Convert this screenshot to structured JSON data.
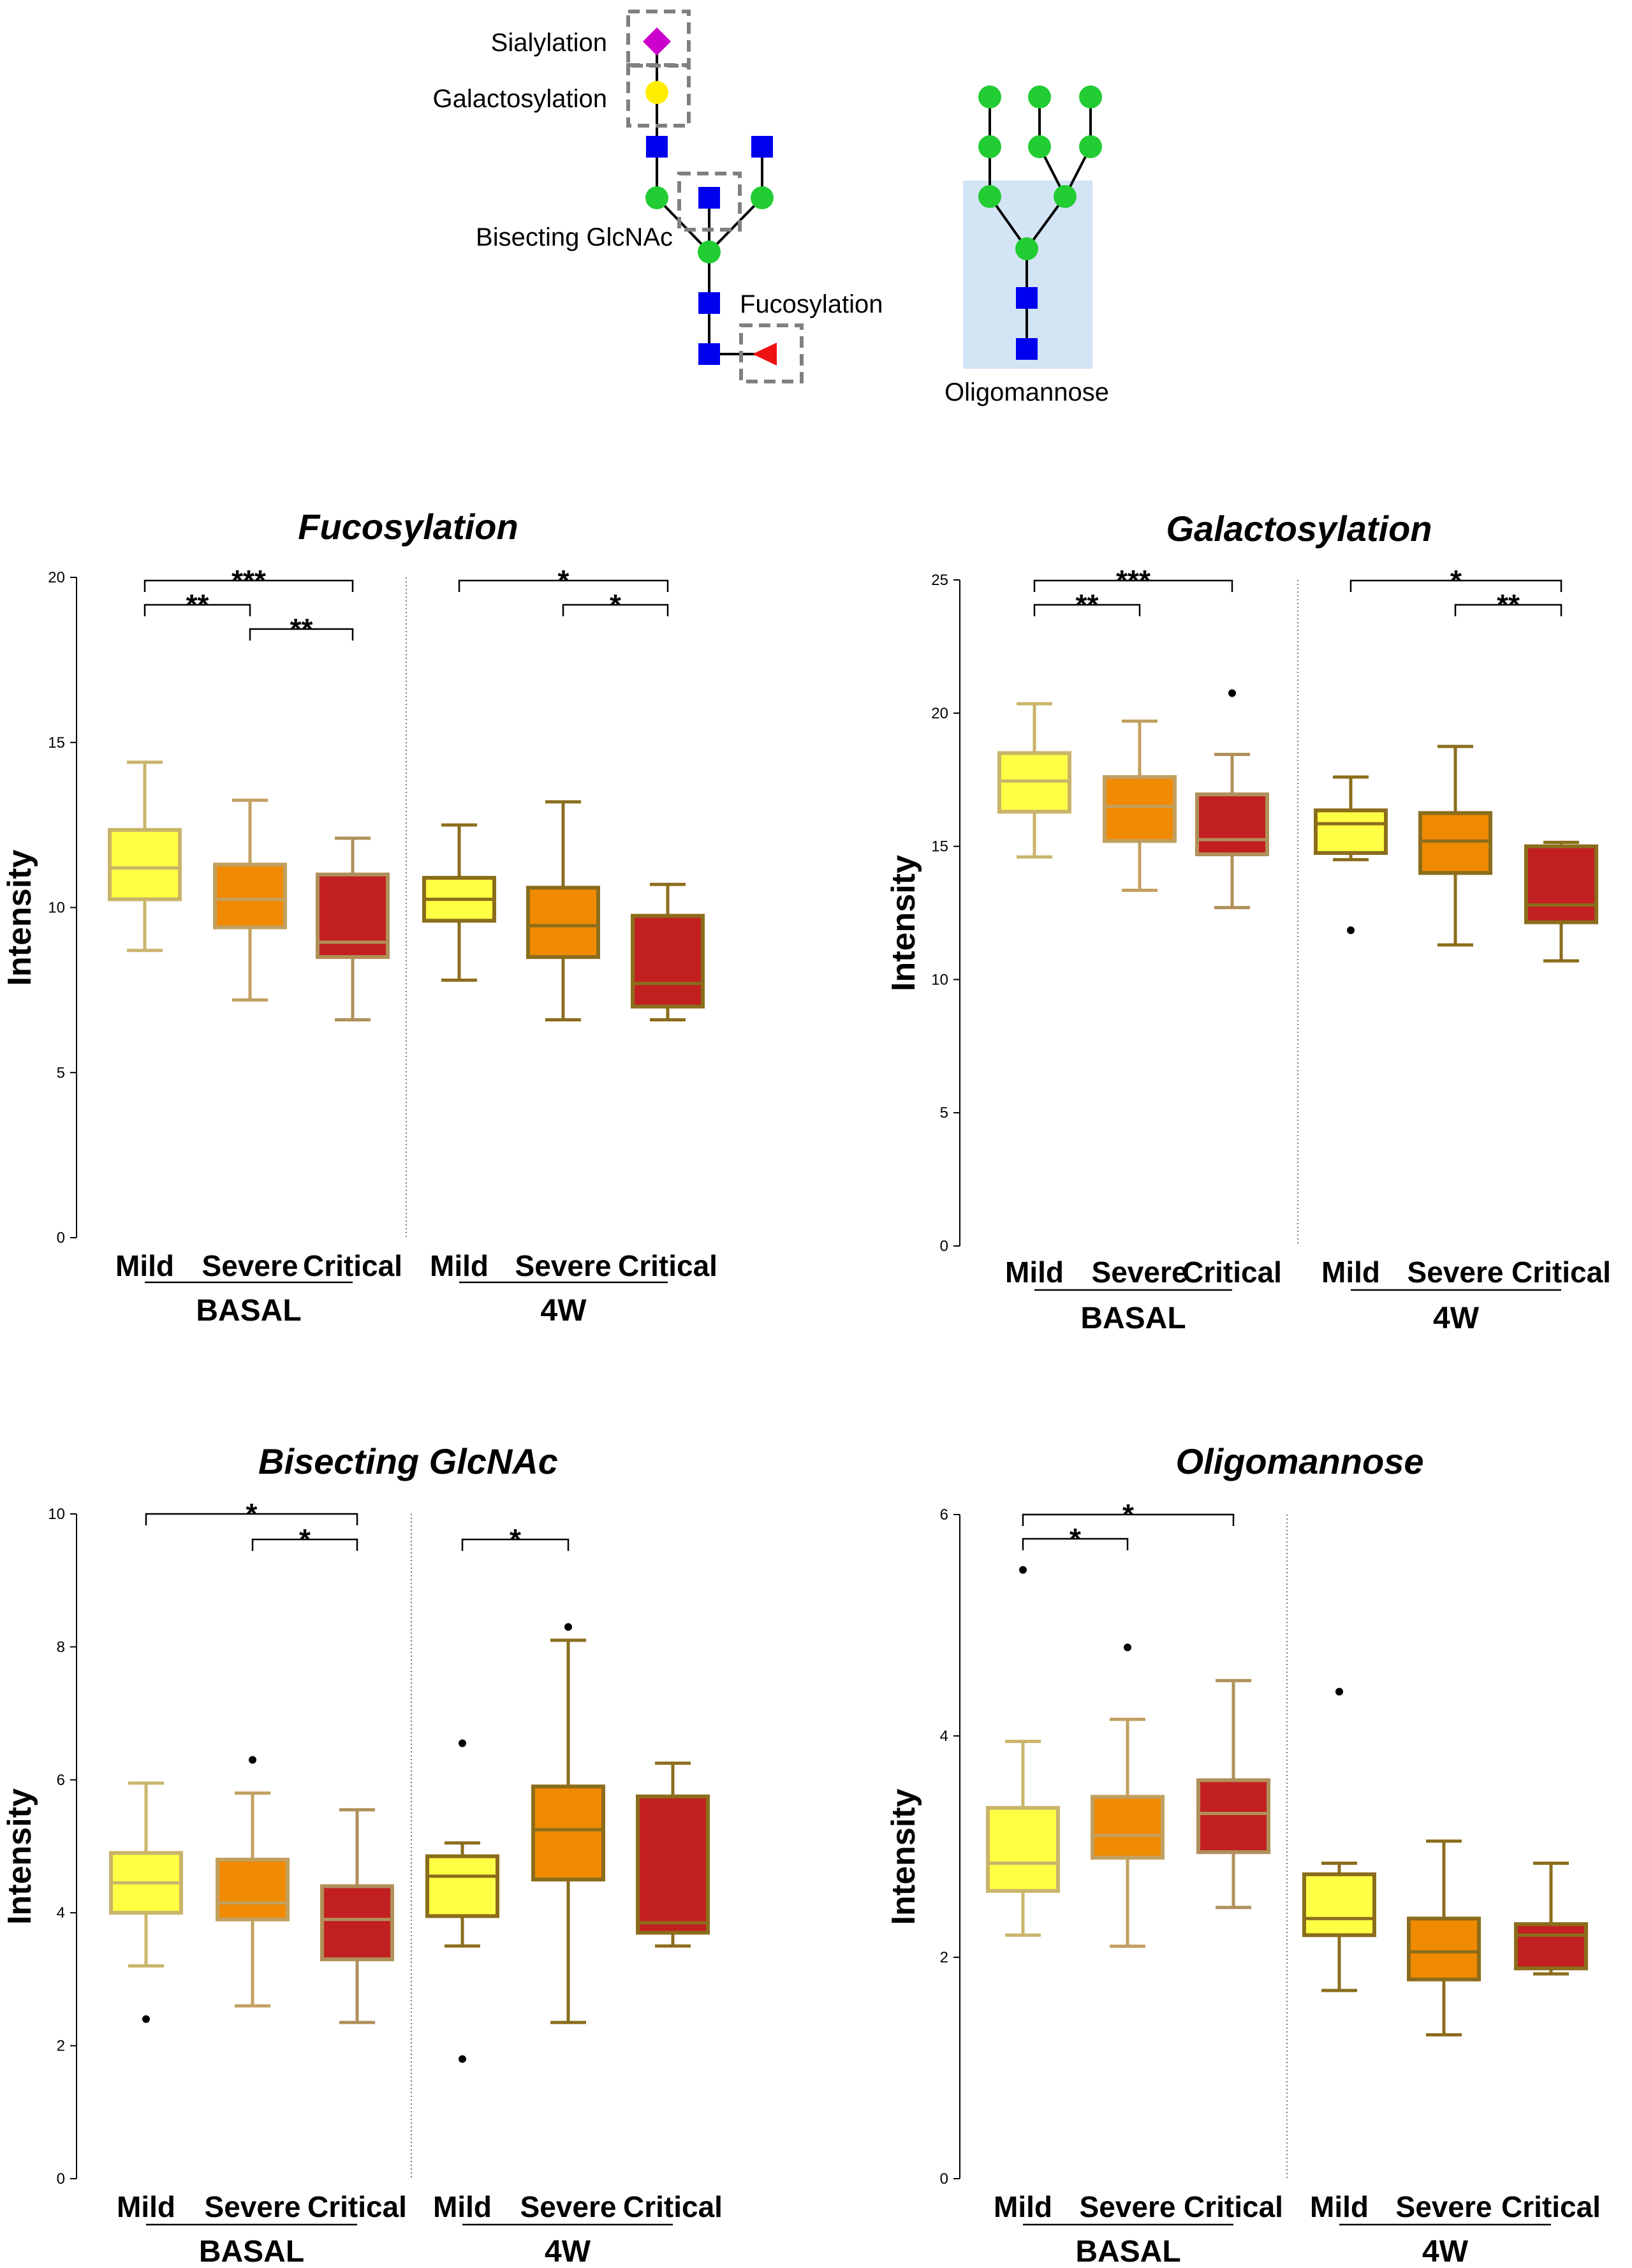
{
  "diagram": {
    "sialylation_label": "Sialylation",
    "galactosylation_label": "Galactosylation",
    "bisecting_label": "Bisecting GlcNAc",
    "fucosylation_label": "Fucosylation",
    "oligomannose_label": "Oligomannose",
    "colors": {
      "glcnac": "#0000ee",
      "mannose": "#22cc33",
      "galactose": "#ffee00",
      "sialic": "#cc00cc",
      "fucose": "#ee1111",
      "highlight": "#d3e4f5",
      "dash_box": "#808080"
    }
  },
  "shared_axis_labels": {
    "ylabel": "Intensity",
    "categories": [
      "Mild",
      "Severe",
      "Critical",
      "Mild",
      "Severe",
      "Critical"
    ],
    "groups": [
      "BASAL",
      "4W"
    ]
  },
  "series_colors": [
    {
      "fill": "#ffff44",
      "stroke": "#c9b46a",
      "median": "#c9b46a"
    },
    {
      "fill": "#f08a00",
      "stroke": "#c2a060",
      "median": "#c2a060"
    },
    {
      "fill": "#c22020",
      "stroke": "#b0905a",
      "median": "#b0905a"
    },
    {
      "fill": "#ffff44",
      "stroke": "#8b6d1c",
      "median": "#8b6d1c"
    },
    {
      "fill": "#f08a00",
      "stroke": "#8b6d1c",
      "median": "#8b6d1c"
    },
    {
      "fill": "#c22020",
      "stroke": "#8b6d1c",
      "median": "#8b6d1c"
    }
  ],
  "chart_data": [
    {
      "type": "box",
      "title": "Fucosylation",
      "ylim": [
        0,
        20
      ],
      "yticks": [
        0,
        5,
        10,
        15,
        20
      ],
      "categories": [
        "Mild",
        "Severe",
        "Critical",
        "Mild",
        "Severe",
        "Critical"
      ],
      "groups": [
        "BASAL",
        "4W"
      ],
      "boxes": [
        {
          "min": 8.7,
          "q1": 10.25,
          "median": 11.2,
          "q3": 12.35,
          "max": 14.4,
          "outliers": []
        },
        {
          "min": 7.2,
          "q1": 9.4,
          "median": 10.25,
          "q3": 11.3,
          "max": 13.25,
          "outliers": []
        },
        {
          "min": 6.6,
          "q1": 8.5,
          "median": 8.95,
          "q3": 11.0,
          "max": 12.1,
          "outliers": []
        },
        {
          "min": 7.8,
          "q1": 9.6,
          "median": 10.25,
          "q3": 10.9,
          "max": 12.5,
          "outliers": []
        },
        {
          "min": 6.6,
          "q1": 8.5,
          "median": 9.45,
          "q3": 10.6,
          "max": 13.2,
          "outliers": []
        },
        {
          "min": 6.6,
          "q1": 7.0,
          "median": 7.7,
          "q3": 9.75,
          "max": 10.7,
          "outliers": []
        }
      ],
      "significance": [
        {
          "from": 0,
          "to": 2,
          "label": "***",
          "tier": 0
        },
        {
          "from": 0,
          "to": 1,
          "label": "**",
          "tier": 1
        },
        {
          "from": 1,
          "to": 2,
          "label": "**",
          "tier": 2
        },
        {
          "from": 3,
          "to": 5,
          "label": "*",
          "tier": 0
        },
        {
          "from": 4,
          "to": 5,
          "label": "*",
          "tier": 1
        }
      ]
    },
    {
      "type": "box",
      "title": "Galactosylation",
      "ylim": [
        0,
        25
      ],
      "yticks": [
        0,
        5,
        10,
        15,
        20,
        25
      ],
      "categories": [
        "Mild",
        "Severe",
        "Critical",
        "Mild",
        "Severe",
        "Critical"
      ],
      "groups": [
        "BASAL",
        "4W"
      ],
      "boxes": [
        {
          "min": 14.6,
          "q1": 16.3,
          "median": 17.45,
          "q3": 18.5,
          "max": 20.35,
          "outliers": []
        },
        {
          "min": 13.35,
          "q1": 15.2,
          "median": 16.5,
          "q3": 17.6,
          "max": 19.7,
          "outliers": []
        },
        {
          "min": 12.7,
          "q1": 14.7,
          "median": 15.25,
          "q3": 16.95,
          "max": 18.45,
          "outliers": [
            20.75
          ]
        },
        {
          "min": 14.5,
          "q1": 14.75,
          "median": 15.85,
          "q3": 16.35,
          "max": 17.6,
          "outliers": [
            11.85
          ]
        },
        {
          "min": 11.3,
          "q1": 14.0,
          "median": 15.2,
          "q3": 16.25,
          "max": 18.75,
          "outliers": []
        },
        {
          "min": 10.7,
          "q1": 12.15,
          "median": 12.8,
          "q3": 15.0,
          "max": 15.15,
          "outliers": []
        }
      ],
      "significance": [
        {
          "from": 0,
          "to": 2,
          "label": "***",
          "tier": 0
        },
        {
          "from": 0,
          "to": 1,
          "label": "**",
          "tier": 1
        },
        {
          "from": 3,
          "to": 5,
          "label": "*",
          "tier": 0
        },
        {
          "from": 4,
          "to": 5,
          "label": "**",
          "tier": 1
        }
      ]
    },
    {
      "type": "box",
      "title": "Bisecting GlcNAc",
      "ylim": [
        0,
        10
      ],
      "yticks": [
        0,
        2,
        4,
        6,
        8,
        10
      ],
      "categories": [
        "Mild",
        "Severe",
        "Critical",
        "Mild",
        "Severe",
        "Critical"
      ],
      "groups": [
        "BASAL",
        "4W"
      ],
      "boxes": [
        {
          "min": 3.2,
          "q1": 4.0,
          "median": 4.45,
          "q3": 4.9,
          "max": 5.95,
          "outliers": [
            2.4
          ]
        },
        {
          "min": 2.6,
          "q1": 3.9,
          "median": 4.15,
          "q3": 4.8,
          "max": 5.8,
          "outliers": [
            6.3
          ]
        },
        {
          "min": 2.35,
          "q1": 3.3,
          "median": 3.9,
          "q3": 4.4,
          "max": 5.55,
          "outliers": []
        },
        {
          "min": 3.5,
          "q1": 3.95,
          "median": 4.55,
          "q3": 4.85,
          "max": 5.05,
          "outliers": [
            6.55,
            1.8
          ]
        },
        {
          "min": 2.35,
          "q1": 4.5,
          "median": 5.25,
          "q3": 5.9,
          "max": 8.1,
          "outliers": [
            8.3
          ]
        },
        {
          "min": 3.5,
          "q1": 3.7,
          "median": 3.85,
          "q3": 5.75,
          "max": 6.25,
          "outliers": []
        }
      ],
      "significance": [
        {
          "from": 0,
          "to": 2,
          "label": "*",
          "tier": 0
        },
        {
          "from": 1,
          "to": 2,
          "label": "*",
          "tier": 1
        },
        {
          "from": 3,
          "to": 4,
          "label": "*",
          "tier": 1
        }
      ]
    },
    {
      "type": "box",
      "title": "Oligomannose",
      "ylim": [
        0,
        6
      ],
      "yticks": [
        0,
        2,
        4,
        6
      ],
      "categories": [
        "Mild",
        "Severe",
        "Critical",
        "Mild",
        "Severe",
        "Critical"
      ],
      "groups": [
        "BASAL",
        "4W"
      ],
      "boxes": [
        {
          "min": 2.2,
          "q1": 2.6,
          "median": 2.85,
          "q3": 3.35,
          "max": 3.95,
          "outliers": [
            5.5
          ]
        },
        {
          "min": 2.1,
          "q1": 2.9,
          "median": 3.1,
          "q3": 3.45,
          "max": 4.15,
          "outliers": [
            4.8
          ]
        },
        {
          "min": 2.45,
          "q1": 2.95,
          "median": 3.3,
          "q3": 3.6,
          "max": 4.5,
          "outliers": []
        },
        {
          "min": 1.7,
          "q1": 2.2,
          "median": 2.35,
          "q3": 2.75,
          "max": 2.85,
          "outliers": [
            4.4
          ]
        },
        {
          "min": 1.3,
          "q1": 1.8,
          "median": 2.05,
          "q3": 2.35,
          "max": 3.05,
          "outliers": []
        },
        {
          "min": 1.85,
          "q1": 1.9,
          "median": 2.2,
          "q3": 2.3,
          "max": 2.85,
          "outliers": []
        }
      ],
      "significance": [
        {
          "from": 0,
          "to": 2,
          "label": "*",
          "tier": 0
        },
        {
          "from": 0,
          "to": 1,
          "label": "*",
          "tier": 1
        }
      ]
    }
  ]
}
